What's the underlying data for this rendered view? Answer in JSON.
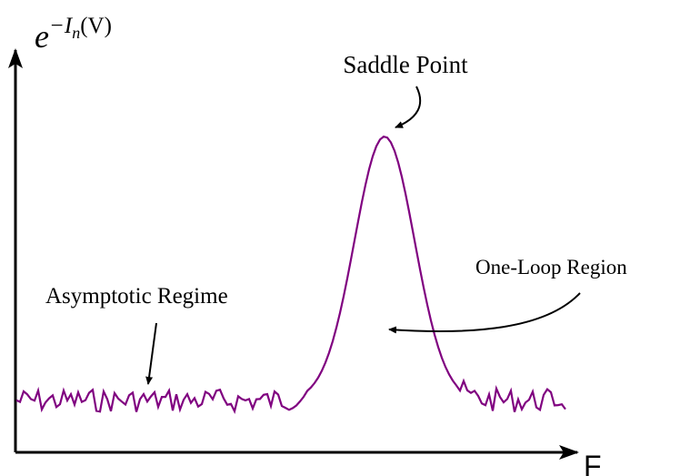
{
  "y_axis_label": {
    "base": "e",
    "exponent": "−I",
    "subscript": "n",
    "tail": "(V)"
  },
  "x_axis_label": "F",
  "annotations": {
    "saddle": "Saddle Point",
    "one_loop": "One-Loop Region",
    "asymptotic": "Asymptotic Regime"
  }
}
